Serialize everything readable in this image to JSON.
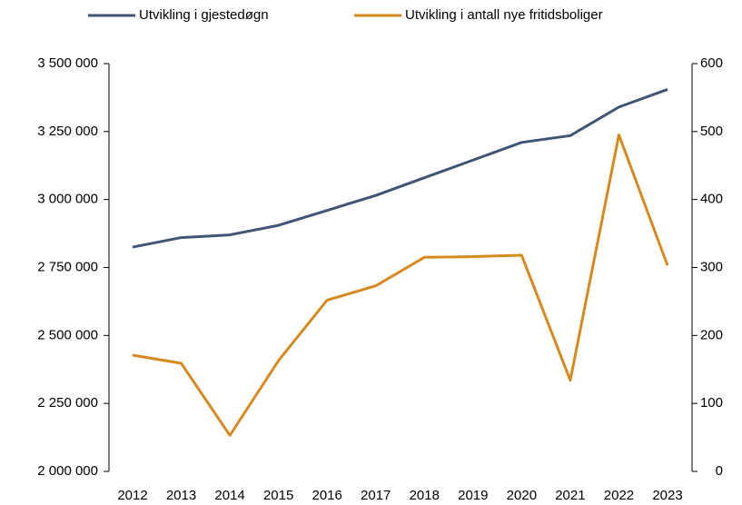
{
  "chart_data": {
    "type": "line",
    "categories": [
      "2012",
      "2013",
      "2014",
      "2015",
      "2016",
      "2017",
      "2018",
      "2019",
      "2020",
      "2021",
      "2022",
      "2023"
    ],
    "series": [
      {
        "name": "Utvikling i gjestedøgn",
        "color": "#3e5575",
        "axis": "y",
        "values": [
          2825000,
          2860000,
          2870000,
          2905000,
          2960000,
          3015000,
          3080000,
          3145000,
          3210000,
          3235000,
          3340000,
          3405000
        ]
      },
      {
        "name": "Utvikling i antall nye fritidsboliger",
        "color": "#d68a1e",
        "axis": "y2",
        "values": [
          171,
          159,
          53,
          163,
          252,
          273,
          315,
          316,
          318,
          134,
          495,
          303
        ]
      }
    ],
    "ylim": [
      2000000,
      3500000
    ],
    "yticks": [
      {
        "value": 2000000,
        "label": "2 000 000"
      },
      {
        "value": 2250000,
        "label": "2 250 000"
      },
      {
        "value": 2500000,
        "label": "2 500 000"
      },
      {
        "value": 2750000,
        "label": "2 750 000"
      },
      {
        "value": 3000000,
        "label": "3 000 000"
      },
      {
        "value": 3250000,
        "label": "3 250 000"
      },
      {
        "value": 3500000,
        "label": "3 500 000"
      }
    ],
    "y2lim": [
      0,
      600
    ],
    "y2ticks": [
      0,
      100,
      200,
      300,
      400,
      500,
      600
    ],
    "legend": "top"
  }
}
